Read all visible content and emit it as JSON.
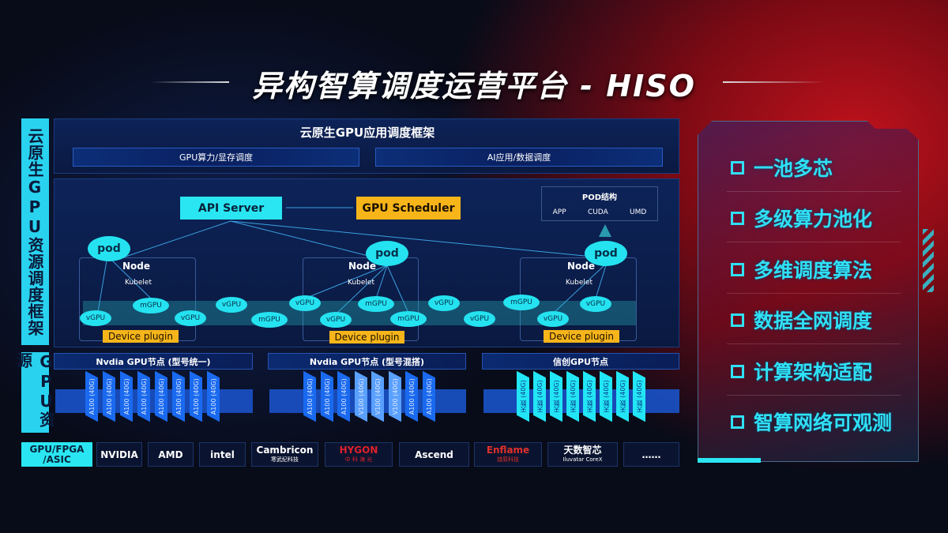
{
  "title": "异构智算调度运营平台 - HISO",
  "left_labels": {
    "framework": "云原生GPU资源调度框架",
    "resources": "GPU资源",
    "vendors": "GPU/FPGA /ASIC"
  },
  "app_framework": {
    "title": "云原生GPU应用调度框架",
    "subs": [
      "GPU算力/显存调度",
      "AI应用/数据调度"
    ]
  },
  "control": {
    "api_server": "API Server",
    "gpu_scheduler": "GPU Scheduler",
    "pod_struct": {
      "title": "POD结构",
      "items": [
        "APP",
        "CUDA",
        "UMD"
      ]
    }
  },
  "nodes": [
    {
      "pod": "pod",
      "node": "Node",
      "kubelet": "Kubelet",
      "plugin": "Device plugin"
    },
    {
      "pod": "pod",
      "node": "Node",
      "kubelet": "Kubelet",
      "plugin": "Device plugin"
    },
    {
      "pod": "pod",
      "node": "Node",
      "kubelet": "Kubelet",
      "plugin": "Device plugin"
    }
  ],
  "virtual_gpus": [
    "vGPU",
    "mGPU",
    "vGPU",
    "vGPU",
    "mGPU",
    "vGPU",
    "vGPU",
    "mGPU",
    "mGPU",
    "vGPU",
    "vGPU",
    "mGPU",
    "vGPU",
    "vGPU"
  ],
  "gpu_groups": [
    {
      "title": "Nvdia GPU节点 (型号统一)",
      "chips": [
        "A100 (40G)",
        "A100 (40G)",
        "A100 (40G)",
        "A100 (40G)",
        "A100 (40G)",
        "A100 (40G)",
        "A100 (40G)",
        "A100 (40G)"
      ]
    },
    {
      "title": "Nvdia GPU节点 (型号混搭)",
      "chips": [
        "A100 (40G)",
        "A100 (40G)",
        "A100 (40G)",
        "V100 (40G)",
        "V100 (40G)",
        "V100 (40G)",
        "A100 (40G)",
        "A100 (40G)"
      ]
    },
    {
      "title": "信创GPU节点",
      "chips": [
        "天数 (40G)",
        "天数 (40G)",
        "天数 (40G)",
        "天数 (40G)",
        "天数 (40G)",
        "天数 (40G)",
        "天数 (40G)",
        "天数 (40G)"
      ]
    }
  ],
  "vendors": [
    {
      "name": "NVIDIA",
      "color": "#ffffff"
    },
    {
      "name": "AMD",
      "color": "#ffffff"
    },
    {
      "name": "intel",
      "color": "#ffffff"
    },
    {
      "name": "Cambricon",
      "sub": "寒武纪科技",
      "color": "#ffffff"
    },
    {
      "name": "HYGON",
      "sub": "中 科 海 光",
      "color": "#e0202a"
    },
    {
      "name": "Ascend",
      "color": "#ffffff"
    },
    {
      "name": "Enflame",
      "sub": "燧原科技",
      "color": "#e0302a"
    },
    {
      "name": "天数智芯",
      "sub": "Iluvatar CoreX",
      "color": "#ffffff"
    },
    {
      "name": "……",
      "color": "#ffffff"
    }
  ],
  "features": [
    "一池多芯",
    "多级算力池化",
    "多维调度算法",
    "数据全网调度",
    "计算架构适配",
    "智算网络可观测"
  ],
  "colors": {
    "cyan": "#29d3f0",
    "orange": "#f7b51a",
    "chip_blue": "#1a6af0",
    "background": "#080b18",
    "accent_red": "#c0121c"
  }
}
